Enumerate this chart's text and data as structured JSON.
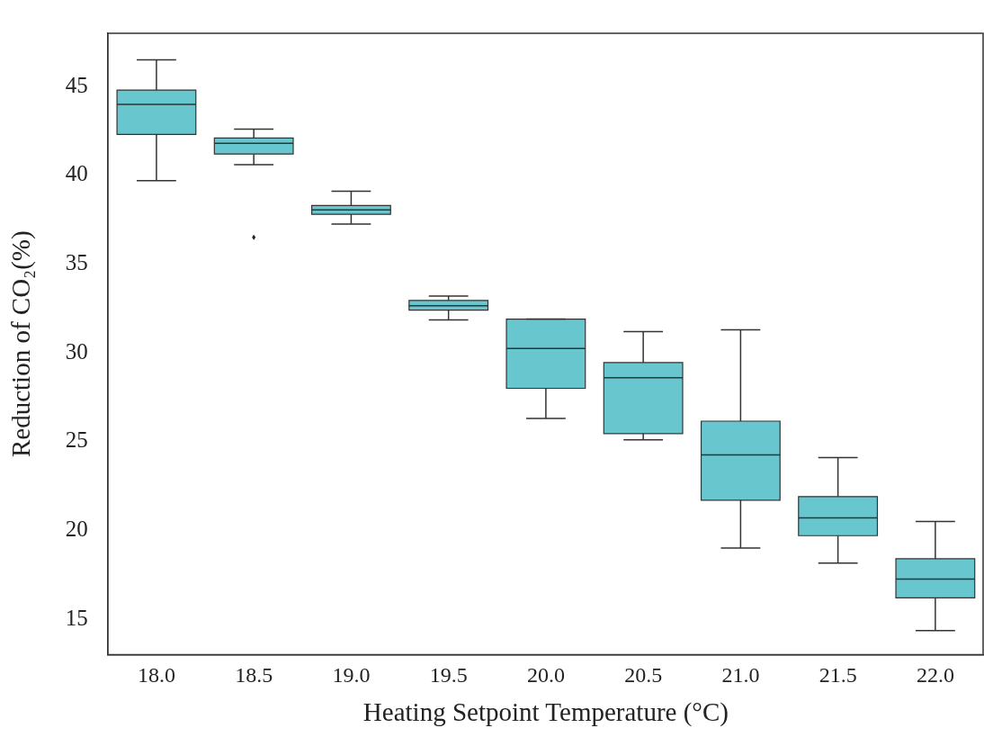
{
  "chart_data": {
    "type": "box",
    "xlabel": "Heating Setpoint Temperature (°C)",
    "ylabel": "Reduction of CO₂(%)",
    "categories": [
      "18.0",
      "18.5",
      "19.0",
      "19.5",
      "20.0",
      "20.5",
      "21.0",
      "21.5",
      "22.0"
    ],
    "color": "#68c6cf",
    "boxes": [
      {
        "low": 39.7,
        "q1": 42.3,
        "median": 44.0,
        "q3": 44.8,
        "high": 46.5
      },
      {
        "low": 40.6,
        "q1": 41.2,
        "median": 41.8,
        "q3": 42.1,
        "high": 42.6,
        "outliers": [
          36.5
        ]
      },
      {
        "low": 37.25,
        "q1": 37.8,
        "median": 38.05,
        "q3": 38.3,
        "high": 39.1
      },
      {
        "low": 31.85,
        "q1": 32.4,
        "median": 32.65,
        "q3": 32.95,
        "high": 33.2
      },
      {
        "low": 26.3,
        "q1": 28.0,
        "median": 30.25,
        "q3": 31.9,
        "high": 31.9
      },
      {
        "low": 25.1,
        "q1": 25.45,
        "median": 28.6,
        "q3": 29.45,
        "high": 31.2
      },
      {
        "low": 19.0,
        "q1": 21.7,
        "median": 24.25,
        "q3": 26.15,
        "high": 31.3
      },
      {
        "low": 18.15,
        "q1": 19.7,
        "median": 20.7,
        "q3": 21.9,
        "high": 24.1
      },
      {
        "low": 14.35,
        "q1": 16.2,
        "median": 17.25,
        "q3": 18.4,
        "high": 20.5
      }
    ],
    "ylim": [
      13,
      48
    ],
    "yticks": [
      15,
      20,
      25,
      30,
      35,
      40,
      45
    ]
  }
}
